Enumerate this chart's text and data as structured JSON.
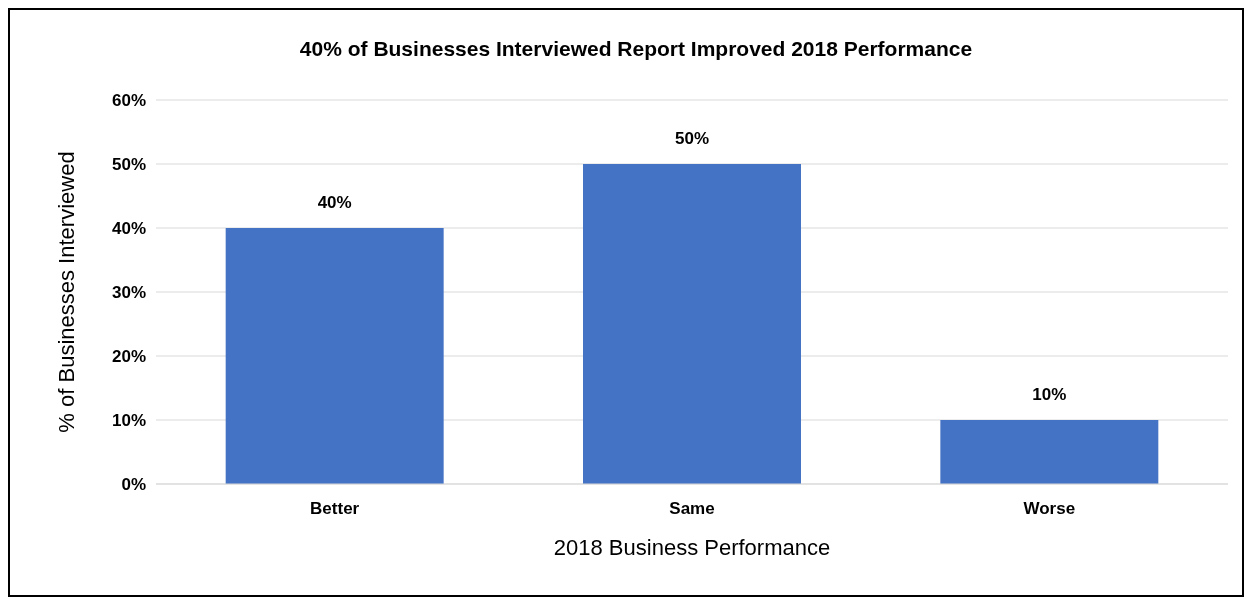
{
  "chart_data": {
    "type": "bar",
    "title": "40% of Businesses Interviewed Report Improved 2018 Performance",
    "xlabel": "2018 Business Performance",
    "ylabel": "% of Businesses Interviewed",
    "categories": [
      "Better",
      "Same",
      "Worse"
    ],
    "values": [
      40,
      50,
      10
    ],
    "value_labels": [
      "40%",
      "50%",
      "10%"
    ],
    "color": "#4472c4",
    "ylim": [
      0,
      60
    ],
    "yticks": [
      {
        "value": 0,
        "label": "0%"
      },
      {
        "value": 10,
        "label": "10%"
      },
      {
        "value": 20,
        "label": "20%"
      },
      {
        "value": 30,
        "label": "30%"
      },
      {
        "value": 40,
        "label": "40%"
      },
      {
        "value": 50,
        "label": "50%"
      },
      {
        "value": 60,
        "label": "60%"
      }
    ],
    "grid": "y"
  }
}
